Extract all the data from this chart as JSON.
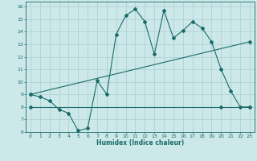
{
  "title": "",
  "xlabel": "Humidex (Indice chaleur)",
  "bg_color": "#cce8e8",
  "line_color": "#1a6b6b",
  "grid_color": "#aacfcf",
  "xlim": [
    -0.5,
    23.5
  ],
  "ylim": [
    6,
    16.4
  ],
  "yticks": [
    6,
    7,
    8,
    9,
    10,
    11,
    12,
    13,
    14,
    15,
    16
  ],
  "xticks": [
    0,
    1,
    2,
    3,
    4,
    5,
    6,
    7,
    8,
    9,
    10,
    11,
    12,
    13,
    14,
    15,
    16,
    17,
    18,
    19,
    20,
    21,
    22,
    23
  ],
  "series1_x": [
    0,
    1,
    2,
    3,
    4,
    5,
    6,
    7,
    8,
    9,
    10,
    11,
    12,
    13,
    14,
    15,
    16,
    17,
    18,
    19,
    20,
    21,
    22,
    23
  ],
  "series1_y": [
    9.0,
    8.8,
    8.5,
    7.8,
    7.5,
    6.1,
    6.3,
    10.1,
    9.0,
    13.8,
    15.3,
    15.8,
    14.8,
    12.2,
    15.7,
    13.5,
    14.1,
    14.8,
    14.3,
    13.2,
    11.0,
    9.3,
    8.0,
    8.0
  ],
  "series2_x": [
    0,
    23
  ],
  "series2_y": [
    9.0,
    13.2
  ],
  "series3_x": [
    0,
    20,
    23
  ],
  "series3_y": [
    8.0,
    8.0,
    8.0
  ]
}
